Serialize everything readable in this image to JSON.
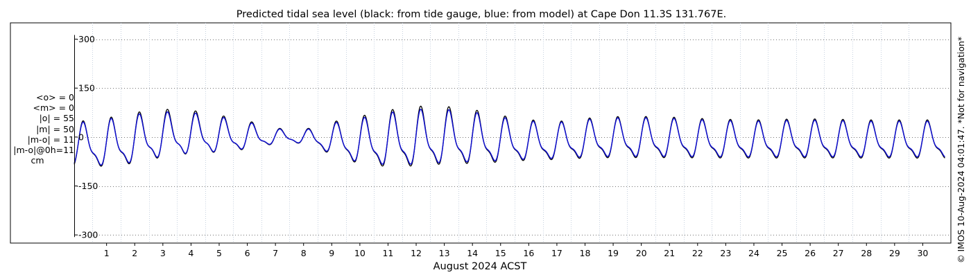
{
  "chart_data": {
    "type": "line",
    "title": "Predicted tidal sea level (black: from tide gauge, blue: from model) at Cape Don 11.3S 131.767E.",
    "xlabel": "August 2024 ACST",
    "ylabel": "",
    "x_unit": "day of August 2024",
    "xlim": [
      -0.15,
      31.0
    ],
    "ylim": [
      -325,
      350
    ],
    "yticks": [
      300,
      150,
      0,
      -150,
      -300
    ],
    "ytick_labels": [
      "300",
      "150",
      "0",
      "-150",
      "-300"
    ],
    "xticks": [
      1,
      2,
      3,
      4,
      5,
      6,
      7,
      8,
      9,
      10,
      11,
      12,
      13,
      14,
      15,
      16,
      17,
      18,
      19,
      20,
      21,
      22,
      23,
      24,
      25,
      26,
      27,
      28,
      29,
      30
    ],
    "xtick_labels": [
      "1",
      "2",
      "3",
      "4",
      "5",
      "6",
      "7",
      "8",
      "9",
      "10",
      "11",
      "12",
      "13",
      "14",
      "15",
      "16",
      "17",
      "18",
      "19",
      "20",
      "21",
      "22",
      "23",
      "24",
      "25",
      "26",
      "27",
      "28",
      "29",
      "30"
    ],
    "grid": true,
    "series": [
      {
        "color": "#000000",
        "x": [
          0,
          0.5,
          1,
          1.5,
          2,
          2.5,
          3,
          3.5,
          4,
          4.5,
          5,
          5.5,
          6,
          6.5,
          7,
          7.5,
          8,
          8.5,
          9,
          9.5,
          10,
          10.5,
          11,
          11.5,
          12,
          12.5,
          13,
          13.5,
          14,
          14.5,
          15,
          15.5,
          16,
          16.5,
          17,
          17.5,
          18,
          18.5,
          19,
          19.5,
          20,
          20.5,
          21,
          21.5,
          22,
          22.5,
          23,
          23.5,
          24,
          24.5,
          25,
          25.5,
          26,
          26.5,
          27,
          27.5,
          28,
          28.5,
          29,
          29.5,
          30,
          30.5,
          31
        ],
        "values": [
          48,
          62,
          60,
          73,
          78,
          85,
          88,
          88,
          85,
          78,
          70,
          60,
          52,
          40,
          30,
          22,
          24,
          35,
          48,
          58,
          66,
          78,
          86,
          92,
          98,
          100,
          98,
          94,
          88,
          80,
          70,
          62,
          56,
          52,
          50,
          55,
          60,
          63,
          65,
          66,
          66,
          65,
          64,
          62,
          60,
          58,
          57,
          56,
          55,
          56,
          57,
          58,
          58,
          58,
          57,
          56,
          55,
          55,
          55,
          55,
          55,
          55,
          55
        ],
        "amplitude": [
          -110,
          -112,
          -115,
          -112,
          -105,
          -95,
          -85,
          -78,
          -72,
          -68,
          -65,
          -60,
          -50,
          -40,
          -28,
          -22,
          -28,
          -45,
          -70,
          -90,
          -105,
          -115,
          -118,
          -120,
          -118,
          -115,
          -112,
          -110,
          -108,
          -105,
          -100,
          -95,
          -92,
          -90,
          -88,
          -86,
          -85,
          -84,
          -84,
          -84,
          -84,
          -84,
          -84,
          -84,
          -84,
          -84,
          -84,
          -84,
          -84,
          -84,
          -84,
          -84,
          -84,
          -84,
          -84,
          -84,
          -84,
          -84,
          -84,
          -84,
          -84,
          -84,
          -84
        ]
      },
      {
        "color": "#1010d0",
        "x": [
          0,
          0.5,
          1,
          1.5,
          2,
          2.5,
          3,
          3.5,
          4,
          4.5,
          5,
          5.5,
          6,
          6.5,
          7,
          7.5,
          8,
          8.5,
          9,
          9.5,
          10,
          10.5,
          11,
          11.5,
          12,
          12.5,
          13,
          13.5,
          14,
          14.5,
          15,
          15.5,
          16,
          16.5,
          17,
          17.5,
          18,
          18.5,
          19,
          19.5,
          20,
          20.5,
          21,
          21.5,
          22,
          22.5,
          23,
          23.5,
          24,
          24.5,
          25,
          25.5,
          26,
          26.5,
          27,
          27.5,
          28,
          28.5,
          29,
          29.5,
          30,
          30.5,
          31
        ],
        "values": [
          44,
          58,
          56,
          68,
          72,
          78,
          80,
          80,
          78,
          72,
          65,
          56,
          48,
          37,
          28,
          20,
          22,
          32,
          44,
          53,
          60,
          70,
          78,
          84,
          88,
          90,
          88,
          85,
          80,
          73,
          64,
          57,
          52,
          48,
          47,
          51,
          56,
          59,
          61,
          62,
          62,
          61,
          60,
          58,
          56,
          54,
          53,
          52,
          51,
          52,
          53,
          54,
          54,
          54,
          53,
          52,
          51,
          51,
          51,
          51,
          51,
          51,
          51
        ],
        "amplitude": [
          -105,
          -108,
          -110,
          -107,
          -100,
          -90,
          -81,
          -74,
          -69,
          -65,
          -62,
          -57,
          -47,
          -38,
          -26,
          -21,
          -26,
          -42,
          -66,
          -85,
          -100,
          -108,
          -110,
          -112,
          -110,
          -107,
          -105,
          -103,
          -101,
          -98,
          -94,
          -90,
          -87,
          -85,
          -83,
          -81,
          -80,
          -79,
          -79,
          -79,
          -79,
          -79,
          -79,
          -79,
          -79,
          -79,
          -79,
          -79,
          -79,
          -79,
          -79,
          -79,
          -79,
          -79,
          -79,
          -79,
          -79,
          -79,
          -79,
          -79,
          -79,
          -79,
          -79
        ]
      }
    ]
  },
  "stats": {
    "lines": [
      "<o> = 0",
      "<m> = 0",
      "|o| = 55",
      "|m| = 50",
      "|m-o| = 11",
      "|m-o|@0h=11"
    ],
    "unit": "cm"
  },
  "side_note": "© IMOS 10-Aug-2024 04:01:47. *Not for navigation*"
}
